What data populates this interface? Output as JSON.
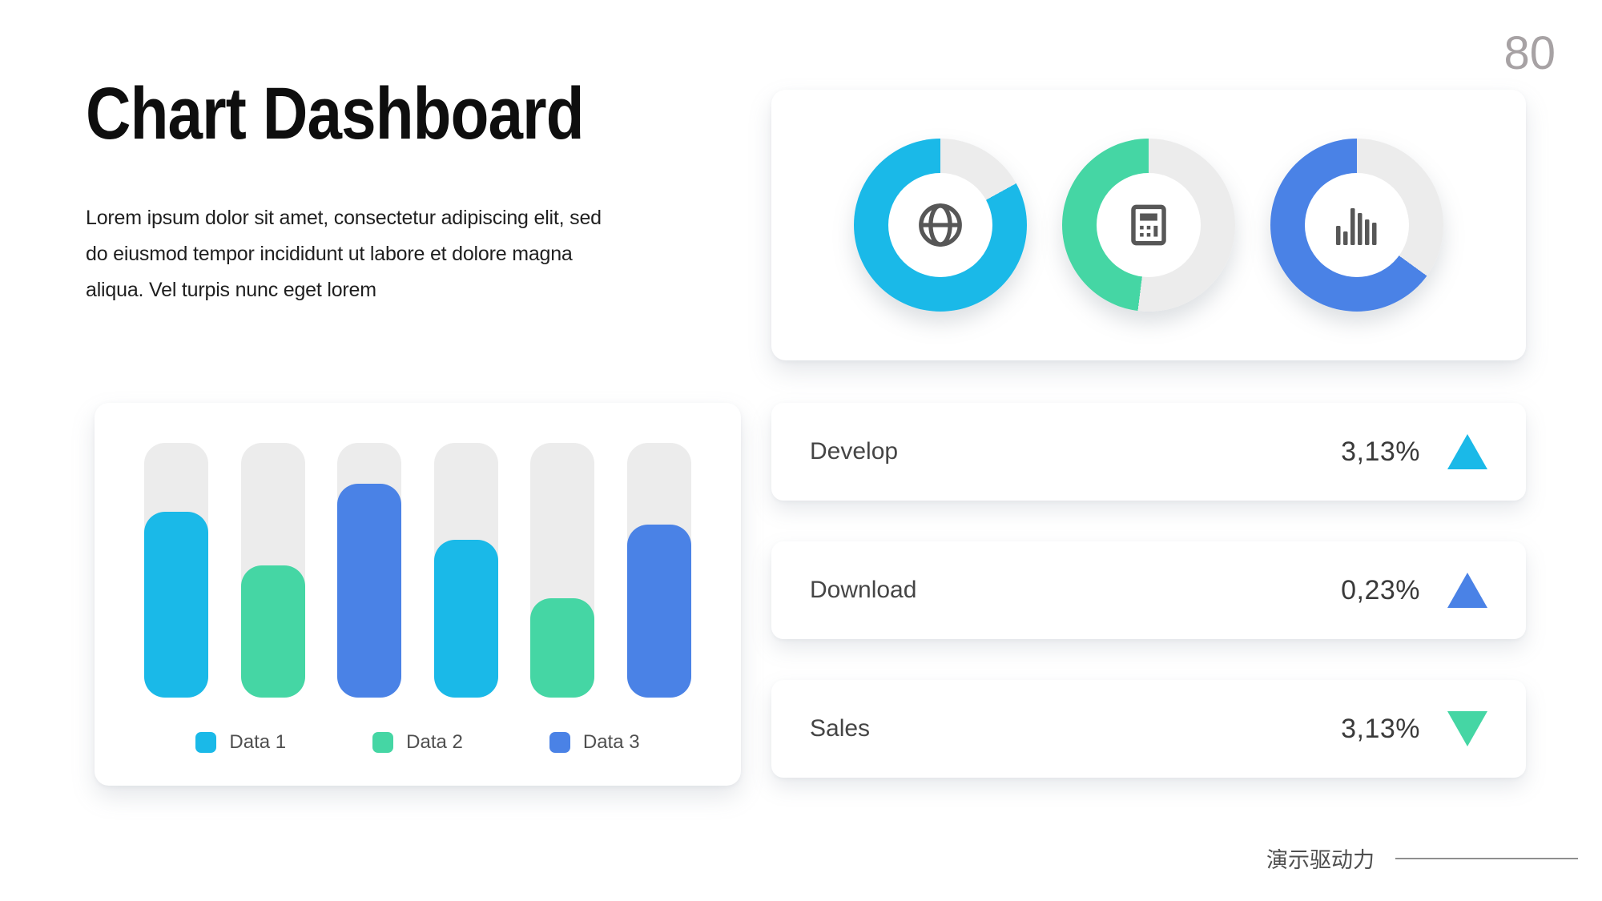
{
  "page": {
    "number": "80"
  },
  "header": {
    "title": "Chart Dashboard",
    "description": "Lorem ipsum dolor sit amet, consectetur adipiscing elit, sed do eiusmod tempor incididunt ut labore et dolore magna aliqua. Vel turpis nunc eget lorem"
  },
  "colors": {
    "cyan": "#1ab9e8",
    "green": "#45d6a4",
    "blue": "#4a82e6",
    "track_gray": "#ececec",
    "icon_gray": "#575757"
  },
  "chart_data": [
    {
      "type": "pie",
      "variant": "three-donut-gauges",
      "start": "top, remainder drawn clockwise first",
      "remainder_color": "#ececec",
      "series": [
        {
          "name": "globe-gauge",
          "value": 83,
          "color": "#1ab9e8",
          "icon": "globe-icon"
        },
        {
          "name": "calculator-gauge",
          "value": 48,
          "color": "#45d6a4",
          "icon": "calculator-icon"
        },
        {
          "name": "bar-chart-gauge",
          "value": 65,
          "color": "#4a82e6",
          "icon": "bar-chart-icon"
        }
      ]
    },
    {
      "type": "bar",
      "title": "",
      "xlabel": "",
      "ylabel": "",
      "ylim": [
        0,
        100
      ],
      "grid": false,
      "track_color": "#ececec",
      "legend_position": "bottom-center",
      "legend": [
        {
          "label": "Data 1",
          "color": "#1ab9e8"
        },
        {
          "label": "Data 2",
          "color": "#45d6a4"
        },
        {
          "label": "Data 3",
          "color": "#4a82e6"
        }
      ],
      "bars": [
        {
          "series": "Data 1",
          "percent": 73,
          "color": "#1ab9e8"
        },
        {
          "series": "Data 2",
          "percent": 52,
          "color": "#45d6a4"
        },
        {
          "series": "Data 3",
          "percent": 84,
          "color": "#4a82e6"
        },
        {
          "series": "Data 1",
          "percent": 62,
          "color": "#1ab9e8"
        },
        {
          "series": "Data 2",
          "percent": 39,
          "color": "#45d6a4"
        },
        {
          "series": "Data 3",
          "percent": 68,
          "color": "#4a82e6"
        }
      ]
    }
  ],
  "stats": {
    "rows": [
      {
        "label": "Develop",
        "value": "3,13%",
        "direction": "up",
        "arrow_color": "#1ab9e8"
      },
      {
        "label": "Download",
        "value": "0,23%",
        "direction": "up",
        "arrow_color": "#4a82e6"
      },
      {
        "label": "Sales",
        "value": "3,13%",
        "direction": "down",
        "arrow_color": "#45d6a4"
      }
    ]
  },
  "footer": {
    "brand": "演示驱动力"
  }
}
